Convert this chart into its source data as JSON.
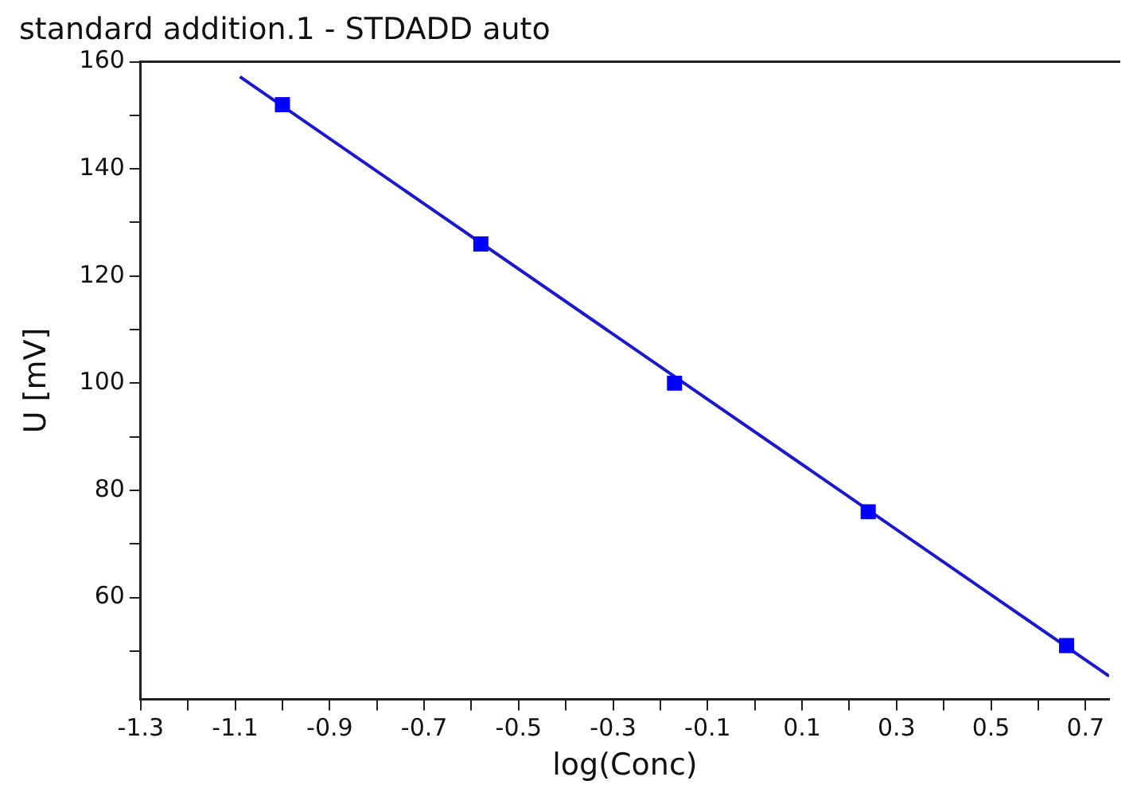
{
  "chart_data": {
    "type": "scatter",
    "title": "standard addition.1 - STDADD auto",
    "xlabel": "log(Conc)",
    "ylabel": "U [mV]",
    "x": [
      -1.0,
      -0.58,
      -0.17,
      0.24,
      0.66
    ],
    "series": [
      {
        "type": "scatter",
        "color": "#0000ff",
        "values": [
          152,
          126,
          100,
          76,
          51
        ],
        "marker": "square"
      },
      {
        "type": "line",
        "color": "#1a1acc",
        "x": [
          -1.09,
          0.75
        ],
        "values": [
          157.2,
          45.3
        ],
        "marker": "none",
        "line_style": "solid"
      }
    ],
    "xlim": [
      -1.3,
      0.75
    ],
    "xticks": [
      -1.3,
      {
        "value": -1.2,
        "label": null
      },
      -1.1,
      {
        "value": -1.0,
        "label": null
      },
      -0.9,
      {
        "value": -0.8,
        "label": null
      },
      -0.7,
      {
        "value": -0.6,
        "label": null
      },
      -0.5,
      {
        "value": -0.4,
        "label": null
      },
      -0.3,
      {
        "value": -0.2,
        "label": null
      },
      -0.1,
      {
        "value": 0,
        "label": null
      },
      0.1,
      {
        "value": 0.2,
        "label": null
      },
      0.3,
      {
        "value": 0.4,
        "label": null
      },
      0.5,
      {
        "value": 0.6,
        "label": null
      },
      0.7
    ],
    "ylim": [
      41,
      160
    ],
    "yticks": [
      {
        "value": 50,
        "label": null
      },
      60,
      {
        "value": 70,
        "label": null
      },
      80,
      {
        "value": 90,
        "label": null
      },
      100,
      {
        "value": 110,
        "label": null
      },
      120,
      {
        "value": 130,
        "label": null
      },
      140,
      {
        "value": 150,
        "label": null
      },
      160
    ],
    "grid": false,
    "legend": false
  }
}
